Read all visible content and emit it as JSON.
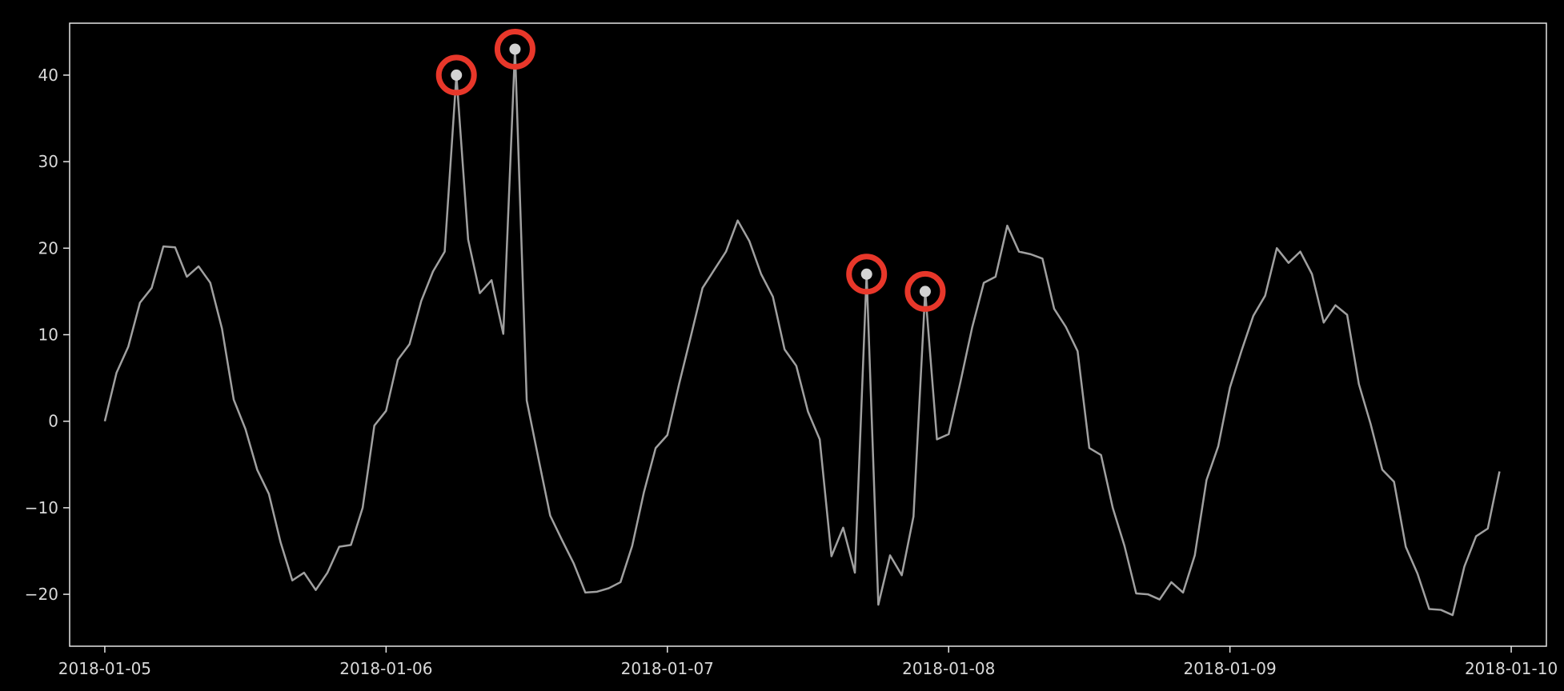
{
  "chart_data": {
    "type": "line",
    "title": "",
    "xlabel": "",
    "ylabel": "",
    "x_start": "2018-01-05 00:00",
    "x_step_hours": 1,
    "xlim": [
      "2018-01-04 21:00",
      "2018-01-10 03:00"
    ],
    "ylim": [
      -26,
      46
    ],
    "x_ticks": [
      "2018-01-05",
      "2018-01-06",
      "2018-01-07",
      "2018-01-08",
      "2018-01-09",
      "2018-01-10"
    ],
    "y_ticks": [
      40,
      30,
      20,
      10,
      0,
      -10,
      -20
    ],
    "grid": false,
    "legend": "none",
    "series": [
      {
        "color": "#a0a0a0",
        "values": [
          0,
          5.6,
          8.6,
          13.7,
          15.4,
          20.2,
          20.1,
          16.7,
          17.9,
          16.0,
          10.7,
          2.5,
          -0.9,
          -5.6,
          -8.4,
          -14.0,
          -18.4,
          -17.5,
          -19.5,
          -17.5,
          -14.5,
          -14.3,
          -10.0,
          -0.5,
          1.2,
          7.1,
          8.9,
          13.9,
          17.3,
          19.6,
          40.0,
          21.0,
          14.8,
          16.3,
          10.1,
          43.0,
          2.4,
          -4.3,
          -10.9,
          -13.7,
          -16.4,
          -19.8,
          -19.7,
          -19.3,
          -18.6,
          -14.4,
          -8.2,
          -3.1,
          -1.6,
          4.3,
          9.8,
          15.4,
          17.5,
          19.6,
          23.2,
          20.8,
          17.0,
          14.4,
          8.3,
          6.4,
          1.1,
          -2.1,
          -15.6,
          -12.3,
          -17.5,
          17.0,
          -21.2,
          -15.5,
          -17.8,
          -11.0,
          15.0,
          -2.1,
          -1.5,
          4.5,
          10.8,
          16.0,
          16.7,
          22.6,
          19.6,
          19.3,
          18.8,
          13.0,
          10.9,
          8.1,
          -3.1,
          -3.9,
          -10.0,
          -14.4,
          -19.9,
          -20.0,
          -20.6,
          -18.6,
          -19.8,
          -15.5,
          -6.8,
          -2.9,
          3.9,
          8.2,
          12.2,
          14.5,
          20.0,
          18.3,
          19.6,
          17.0,
          11.4,
          13.4,
          12.3,
          4.3,
          -0.3,
          -5.6,
          -7.0,
          -14.5,
          -17.6,
          -21.7,
          -21.8,
          -22.4,
          -16.8,
          -13.3,
          -12.4,
          -5.8
        ]
      }
    ],
    "markers": {
      "fill": "#d3d3d3",
      "ring_color": "#e8372a",
      "points": [
        {
          "x": "2018-01-06 06:00",
          "y": 40.0
        },
        {
          "x": "2018-01-06 11:00",
          "y": 43.0
        },
        {
          "x": "2018-01-07 17:00",
          "y": 17.0
        },
        {
          "x": "2018-01-07 22:00",
          "y": 15.0
        }
      ]
    },
    "colors": {
      "background": "#000000",
      "axes": "#e6e6e6",
      "tick_text": "#d9d9d9"
    }
  }
}
